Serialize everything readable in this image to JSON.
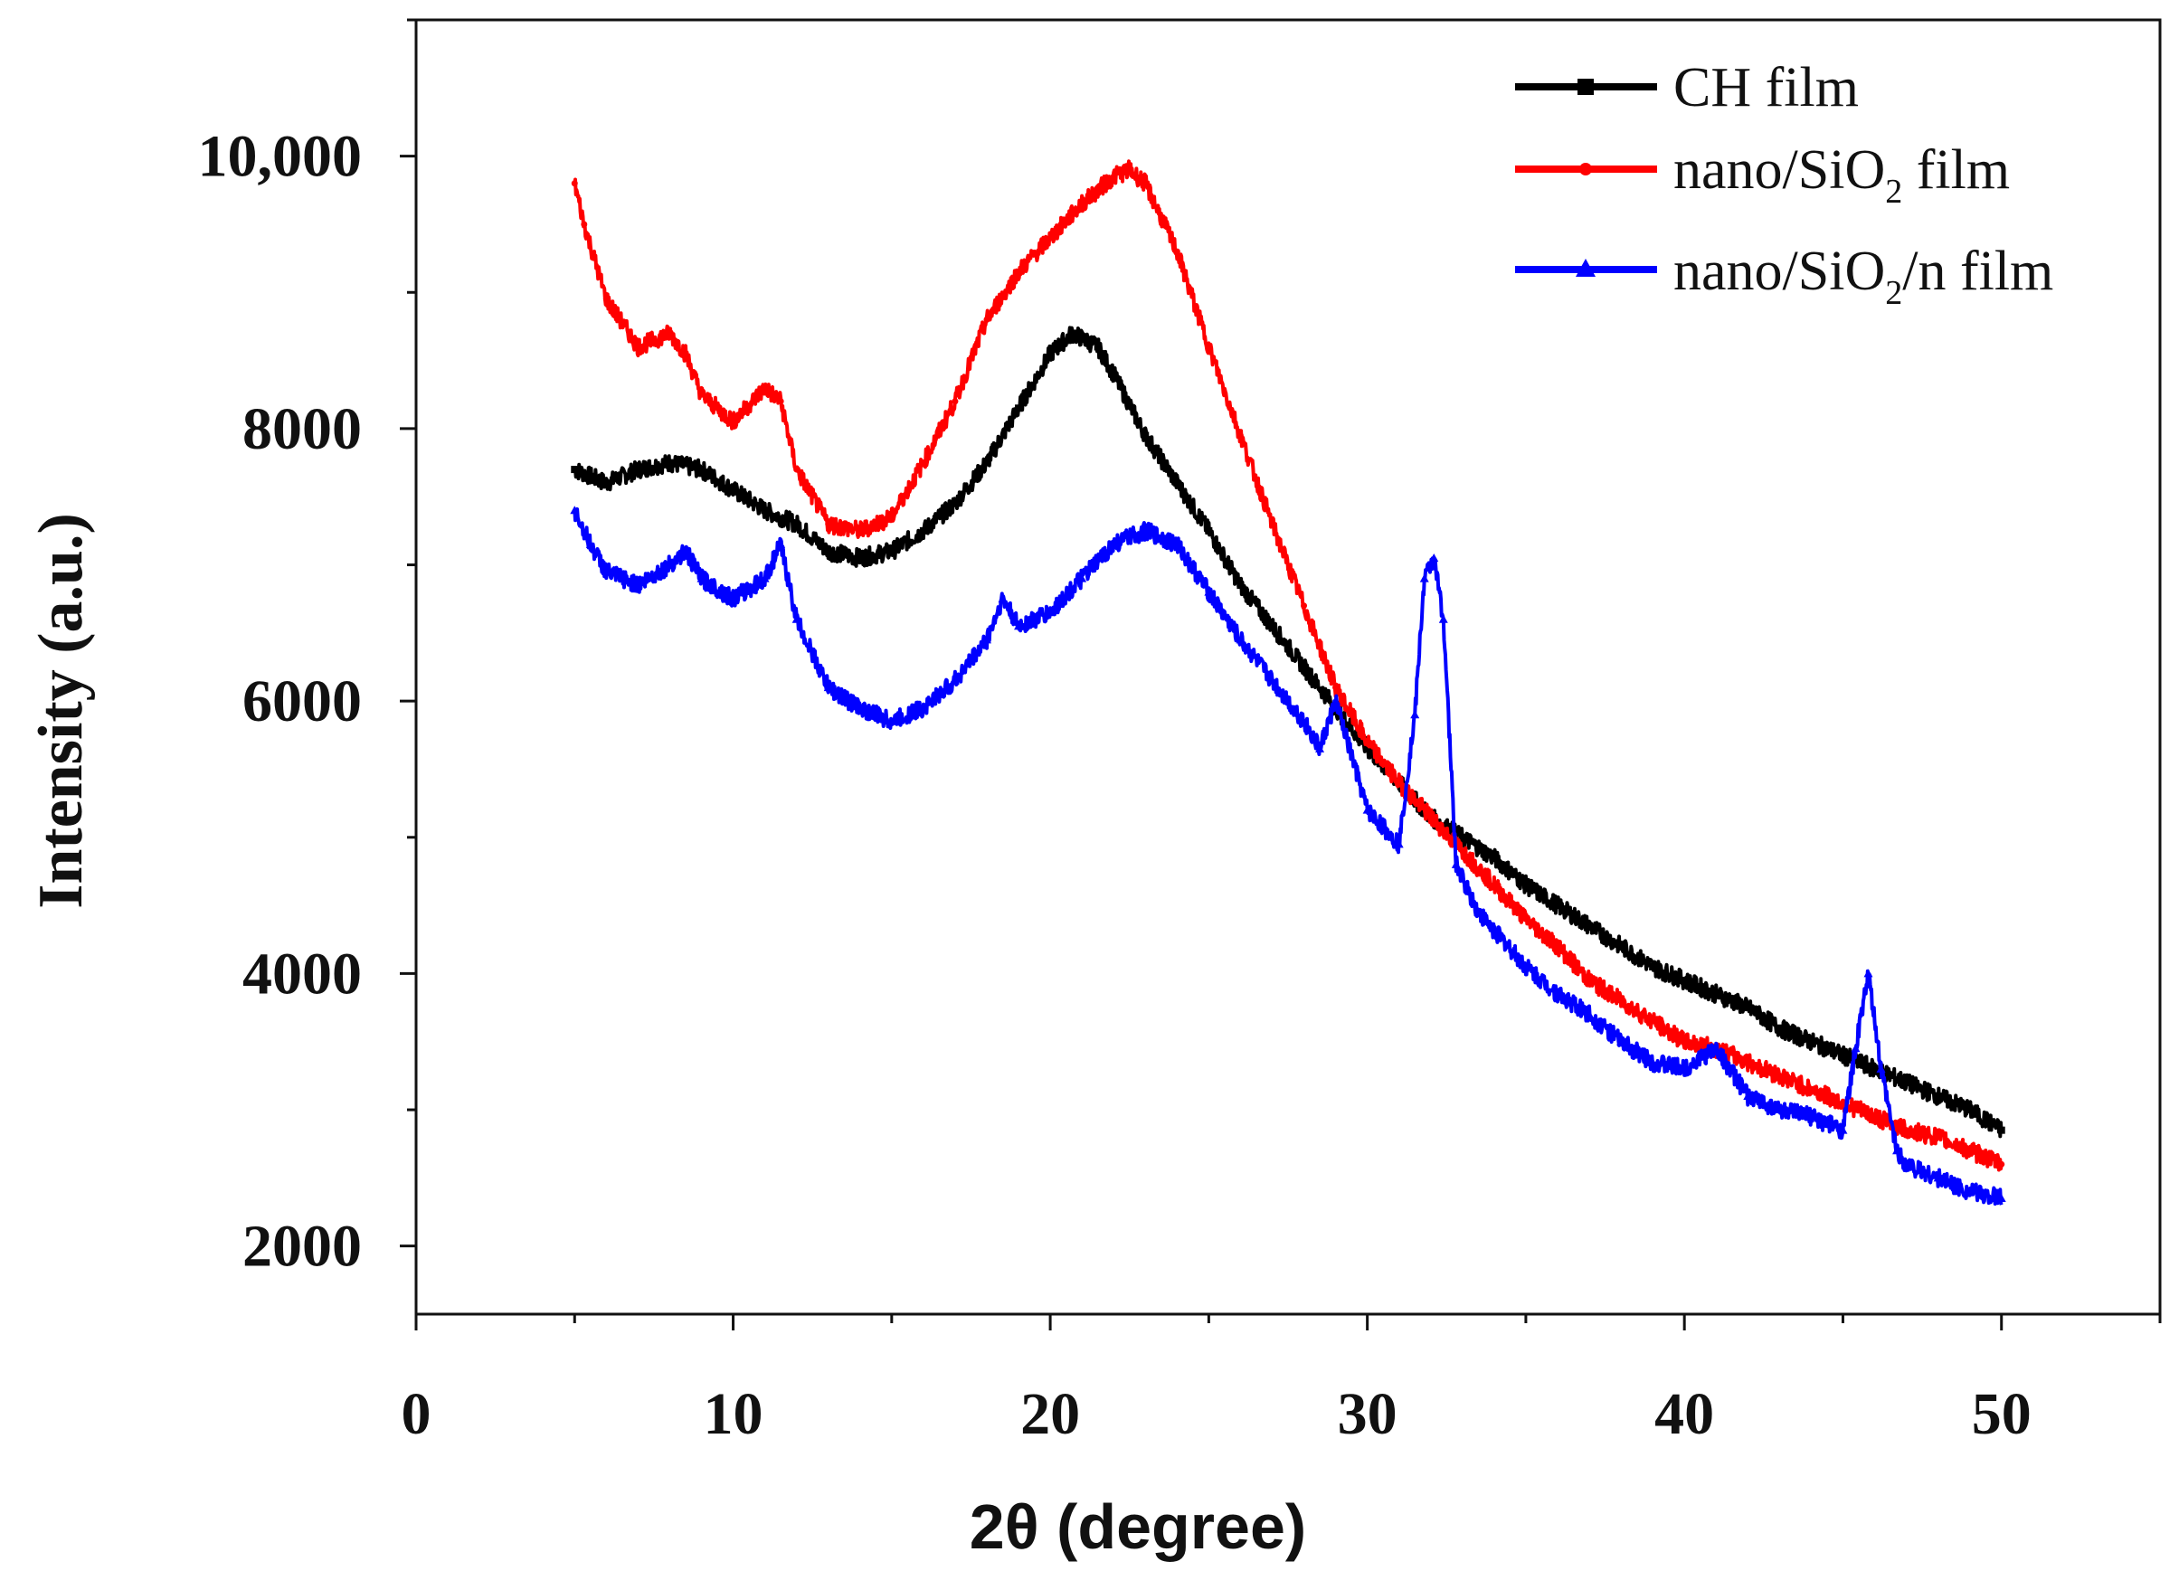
{
  "chart_data": {
    "type": "line",
    "title": "",
    "xlabel": "2θ (degree)",
    "ylabel": "Intensity (a.u.)",
    "xlim": [
      0,
      55
    ],
    "ylim": [
      1500,
      11000
    ],
    "xticks": [
      0,
      10,
      20,
      30,
      40,
      50
    ],
    "xtick_labels": [
      "0",
      "10",
      "20",
      "30",
      "40",
      "50"
    ],
    "yticks": [
      2000,
      4000,
      6000,
      8000,
      10000
    ],
    "ytick_labels": [
      "2000",
      "4000",
      "6000",
      "8000",
      "10,000"
    ],
    "grid": false,
    "legend_position": "top-right",
    "series": [
      {
        "name": "CH film",
        "color": "#000000",
        "marker": "square",
        "x": [
          5,
          6,
          7,
          8,
          9,
          10,
          11,
          12,
          13,
          14,
          15,
          16,
          17,
          18,
          19,
          20,
          20.7,
          21.5,
          22,
          23,
          24,
          25,
          26,
          27,
          28,
          29,
          30,
          31,
          32,
          33,
          34,
          35,
          36,
          37,
          38,
          39,
          40,
          41,
          42,
          43,
          44,
          45,
          46,
          47,
          48,
          49,
          50
        ],
        "y": [
          7700,
          7600,
          7700,
          7750,
          7700,
          7550,
          7400,
          7300,
          7100,
          7050,
          7100,
          7250,
          7450,
          7750,
          8150,
          8550,
          8700,
          8600,
          8400,
          7950,
          7600,
          7250,
          6850,
          6550,
          6250,
          5950,
          5650,
          5400,
          5150,
          5000,
          4850,
          4650,
          4500,
          4350,
          4200,
          4050,
          3950,
          3850,
          3750,
          3600,
          3500,
          3400,
          3300,
          3200,
          3100,
          3000,
          2850
        ]
      },
      {
        "name": "nano/SiO₂ film",
        "color": "#ff0000",
        "marker": "dot",
        "x": [
          5,
          5.3,
          6,
          7,
          8,
          8.5,
          9,
          10,
          11,
          11.5,
          12,
          13,
          14,
          15,
          16,
          17,
          18,
          19,
          20,
          21,
          22,
          22.5,
          23,
          24,
          25,
          26,
          27,
          28,
          29,
          30,
          31,
          32,
          33,
          34,
          35,
          36,
          37,
          38,
          39,
          40,
          41,
          42,
          43,
          44,
          45,
          46,
          47,
          48,
          49,
          50
        ],
        "y": [
          9800,
          9500,
          8950,
          8600,
          8700,
          8550,
          8250,
          8050,
          8300,
          8200,
          7700,
          7300,
          7250,
          7350,
          7750,
          8200,
          8800,
          9150,
          9400,
          9650,
          9850,
          9900,
          9800,
          9300,
          8600,
          7950,
          7300,
          6700,
          6100,
          5700,
          5400,
          5150,
          4900,
          4650,
          4400,
          4200,
          3950,
          3800,
          3650,
          3500,
          3450,
          3350,
          3250,
          3150,
          3050,
          2950,
          2850,
          2800,
          2700,
          2600
        ]
      },
      {
        "name": "nano/SiO₂/n film",
        "color": "#0000ff",
        "marker": "triangle",
        "x": [
          5,
          5.5,
          6,
          7,
          8,
          8.5,
          9,
          10,
          11,
          11.5,
          12,
          13,
          14,
          15,
          16,
          17,
          18,
          18.5,
          19,
          20,
          21,
          22,
          23,
          24,
          25,
          26,
          27,
          28,
          28.5,
          29,
          30,
          31,
          31.5,
          31.8,
          32.1,
          32.4,
          32.8,
          33.5,
          35,
          36,
          37,
          38,
          39,
          40,
          41,
          42,
          43,
          44,
          45,
          45.4,
          45.8,
          46.2,
          46.7,
          47,
          48,
          49,
          50
        ],
        "y": [
          7400,
          7150,
          6950,
          6850,
          7000,
          7100,
          6900,
          6750,
          6900,
          7150,
          6600,
          6100,
          5950,
          5850,
          5950,
          6150,
          6450,
          6750,
          6550,
          6650,
          6900,
          7150,
          7250,
          7150,
          6800,
          6450,
          6150,
          5850,
          5650,
          6000,
          5200,
          4950,
          5900,
          6900,
          7050,
          6600,
          4800,
          4450,
          4050,
          3850,
          3700,
          3500,
          3350,
          3300,
          3450,
          3100,
          3000,
          2950,
          2850,
          3450,
          4000,
          3300,
          2700,
          2600,
          2500,
          2400,
          2350
        ]
      }
    ]
  },
  "axes": {
    "xlabel_theta": "2θ",
    "xlabel_paren": " (degree)"
  },
  "legend": {
    "entries": [
      {
        "prefix": "CH film",
        "sub": "",
        "suffix": ""
      },
      {
        "prefix": "nano/SiO",
        "sub": "2",
        "suffix": " film"
      },
      {
        "prefix": "nano/SiO",
        "sub": "2",
        "suffix": "/n film"
      }
    ]
  }
}
